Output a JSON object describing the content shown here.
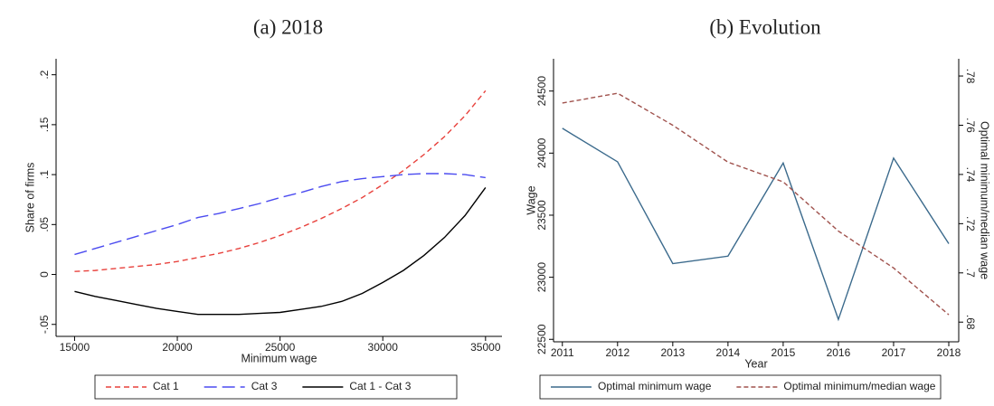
{
  "chart_data": [
    {
      "type": "line",
      "title": "(a) 2018",
      "xlabel": "Minimum wage",
      "ylabel": "Share of firms",
      "x": [
        15000,
        16000,
        17000,
        18000,
        19000,
        20000,
        21000,
        22000,
        23000,
        24000,
        25000,
        26000,
        27000,
        28000,
        29000,
        30000,
        31000,
        32000,
        33000,
        34000,
        35000
      ],
      "series": [
        {
          "name": "Cat 1",
          "color": "#e8413c",
          "dash": "6,4",
          "values": [
            0.003,
            0.004,
            0.006,
            0.008,
            0.01,
            0.013,
            0.017,
            0.021,
            0.026,
            0.032,
            0.039,
            0.047,
            0.056,
            0.066,
            0.077,
            0.09,
            0.104,
            0.12,
            0.138,
            0.159,
            0.184
          ]
        },
        {
          "name": "Cat 3",
          "color": "#4b4bf0",
          "dash": "14,6",
          "values": [
            0.02,
            0.026,
            0.032,
            0.038,
            0.044,
            0.05,
            0.057,
            0.061,
            0.066,
            0.071,
            0.077,
            0.082,
            0.088,
            0.093,
            0.096,
            0.098,
            0.1,
            0.101,
            0.101,
            0.1,
            0.097
          ]
        },
        {
          "name": "Cat 1 - Cat 3",
          "color": "#000000",
          "dash": "none",
          "values": [
            -0.017,
            -0.022,
            -0.026,
            -0.03,
            -0.034,
            -0.037,
            -0.04,
            -0.04,
            -0.04,
            -0.039,
            -0.038,
            -0.035,
            -0.032,
            -0.027,
            -0.019,
            -0.008,
            0.004,
            0.019,
            0.037,
            0.059,
            0.087
          ]
        }
      ],
      "xlim": [
        14100,
        35800
      ],
      "xticks": [
        15000,
        20000,
        25000,
        30000,
        35000
      ],
      "ylim": [
        -0.062,
        0.216
      ],
      "yticks": [
        {
          "value": -0.05,
          "label": "-.05"
        },
        0,
        {
          "value": 0.05,
          "label": ".05"
        },
        {
          "value": 0.1,
          "label": ".1"
        },
        {
          "value": 0.15,
          "label": ".15"
        },
        {
          "value": 0.2,
          "label": ".2"
        }
      ],
      "grid": false,
      "legend": "bottom"
    },
    {
      "type": "line",
      "title": "(b) Evolution",
      "xlabel": "Year",
      "ylabel": "Wage",
      "y2label": "Optimal minimum/median wage",
      "x": [
        2011,
        2012,
        2013,
        2014,
        2015,
        2016,
        2017,
        2018
      ],
      "series": [
        {
          "name": "Optimal minimum wage",
          "color": "#3b6a8c",
          "dash": "none",
          "values": [
            24200,
            23930,
            23110,
            23170,
            23920,
            22660,
            23960,
            23270
          ]
        },
        {
          "name": "Optimal minimum/median wage",
          "color": "#a0524d",
          "dash": "5,3",
          "axis": "y2",
          "values": [
            0.769,
            0.773,
            0.76,
            0.745,
            0.737,
            0.717,
            0.702,
            0.683
          ]
        }
      ],
      "xlim": [
        2010.84,
        2018.18
      ],
      "xticks": [
        2011,
        2012,
        2013,
        2014,
        2015,
        2016,
        2017,
        2018
      ],
      "ylim": [
        22480,
        24760
      ],
      "yticks": [
        22500,
        23000,
        23500,
        24000,
        24500
      ],
      "y2lim": [
        0.672,
        0.787
      ],
      "y2ticks": [
        {
          "value": 0.68,
          "label": ".68"
        },
        {
          "value": 0.7,
          "label": ".7"
        },
        {
          "value": 0.72,
          "label": ".72"
        },
        {
          "value": 0.74,
          "label": ".74"
        },
        {
          "value": 0.76,
          "label": ".76"
        },
        {
          "value": 0.78,
          "label": ".78"
        }
      ],
      "grid": false,
      "legend": "bottom"
    }
  ]
}
